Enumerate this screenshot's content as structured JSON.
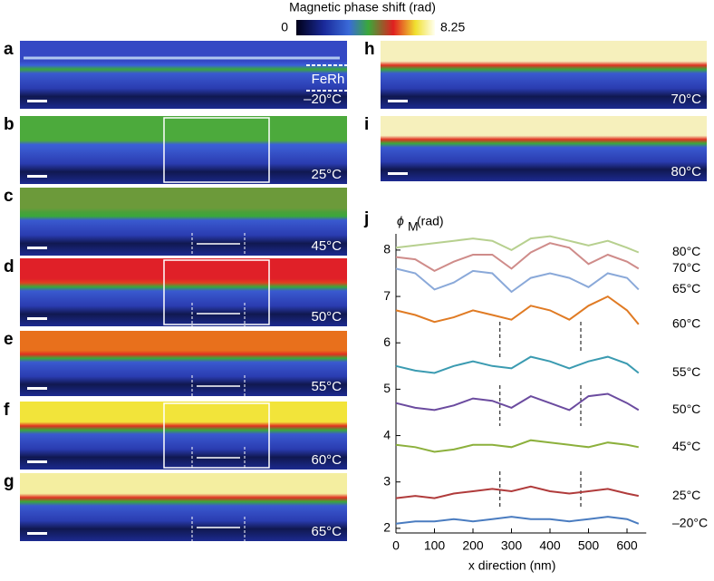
{
  "colorbar": {
    "title": "Magnetic phase shift (rad)",
    "min_label": "0",
    "max_label": "8.25"
  },
  "panels": [
    {
      "letter": "a",
      "temperature": "–20°C",
      "material": "FeRh"
    },
    {
      "letter": "b",
      "temperature": "25°C"
    },
    {
      "letter": "c",
      "temperature": "45°C"
    },
    {
      "letter": "d",
      "temperature": "50°C"
    },
    {
      "letter": "e",
      "temperature": "55°C"
    },
    {
      "letter": "f",
      "temperature": "60°C"
    },
    {
      "letter": "g",
      "temperature": "65°C"
    },
    {
      "letter": "h",
      "temperature": "70°C"
    },
    {
      "letter": "i",
      "temperature": "80°C"
    }
  ],
  "chart_data": {
    "type": "line",
    "panel_label": "j",
    "y_label": "ϕ",
    "y_label_sub": "M",
    "y_label_unit": "(rad)",
    "x_label": "x direction (nm)",
    "x": [
      0,
      50,
      100,
      150,
      200,
      250,
      300,
      350,
      400,
      450,
      500,
      550,
      600,
      630
    ],
    "xlim": [
      0,
      650
    ],
    "xticks": [
      0,
      100,
      200,
      300,
      400,
      500,
      600
    ],
    "ylim": [
      1.9,
      8.35
    ],
    "yticks": [
      2,
      3,
      4,
      5,
      6,
      7,
      8
    ],
    "series": [
      {
        "name": "80°C",
        "color": "#b7d08f",
        "values": [
          8.05,
          8.1,
          8.15,
          8.2,
          8.25,
          8.2,
          8.0,
          8.25,
          8.3,
          8.2,
          8.1,
          8.2,
          8.05,
          7.95
        ]
      },
      {
        "name": "70°C",
        "color": "#cf8c8a",
        "values": [
          7.85,
          7.8,
          7.55,
          7.75,
          7.9,
          7.9,
          7.6,
          7.95,
          8.15,
          8.05,
          7.7,
          7.9,
          7.75,
          7.6
        ]
      },
      {
        "name": "65°C",
        "color": "#8aa9d9",
        "values": [
          7.6,
          7.5,
          7.15,
          7.3,
          7.55,
          7.5,
          7.1,
          7.4,
          7.5,
          7.4,
          7.2,
          7.5,
          7.4,
          7.15
        ]
      },
      {
        "name": "60°C",
        "color": "#e07b24",
        "values": [
          6.7,
          6.6,
          6.45,
          6.55,
          6.7,
          6.6,
          6.5,
          6.8,
          6.7,
          6.5,
          6.8,
          7.0,
          6.7,
          6.4
        ]
      },
      {
        "name": "55°C",
        "color": "#3b9bb1",
        "values": [
          5.5,
          5.4,
          5.35,
          5.5,
          5.6,
          5.5,
          5.45,
          5.7,
          5.6,
          5.45,
          5.6,
          5.7,
          5.55,
          5.35
        ]
      },
      {
        "name": "50°C",
        "color": "#6b4b9f",
        "values": [
          4.7,
          4.6,
          4.55,
          4.65,
          4.8,
          4.75,
          4.6,
          4.85,
          4.7,
          4.55,
          4.85,
          4.9,
          4.7,
          4.55
        ]
      },
      {
        "name": "45°C",
        "color": "#8cb03c",
        "values": [
          3.8,
          3.75,
          3.65,
          3.7,
          3.8,
          3.8,
          3.75,
          3.9,
          3.85,
          3.8,
          3.75,
          3.85,
          3.8,
          3.75
        ]
      },
      {
        "name": "25°C",
        "color": "#b03b3b",
        "values": [
          2.65,
          2.7,
          2.65,
          2.75,
          2.8,
          2.85,
          2.8,
          2.9,
          2.8,
          2.75,
          2.8,
          2.85,
          2.75,
          2.7
        ]
      },
      {
        "name": "–20°C",
        "color": "#4a7cc0",
        "values": [
          2.1,
          2.15,
          2.15,
          2.2,
          2.15,
          2.2,
          2.25,
          2.2,
          2.2,
          2.15,
          2.2,
          2.25,
          2.2,
          2.1
        ]
      }
    ]
  }
}
